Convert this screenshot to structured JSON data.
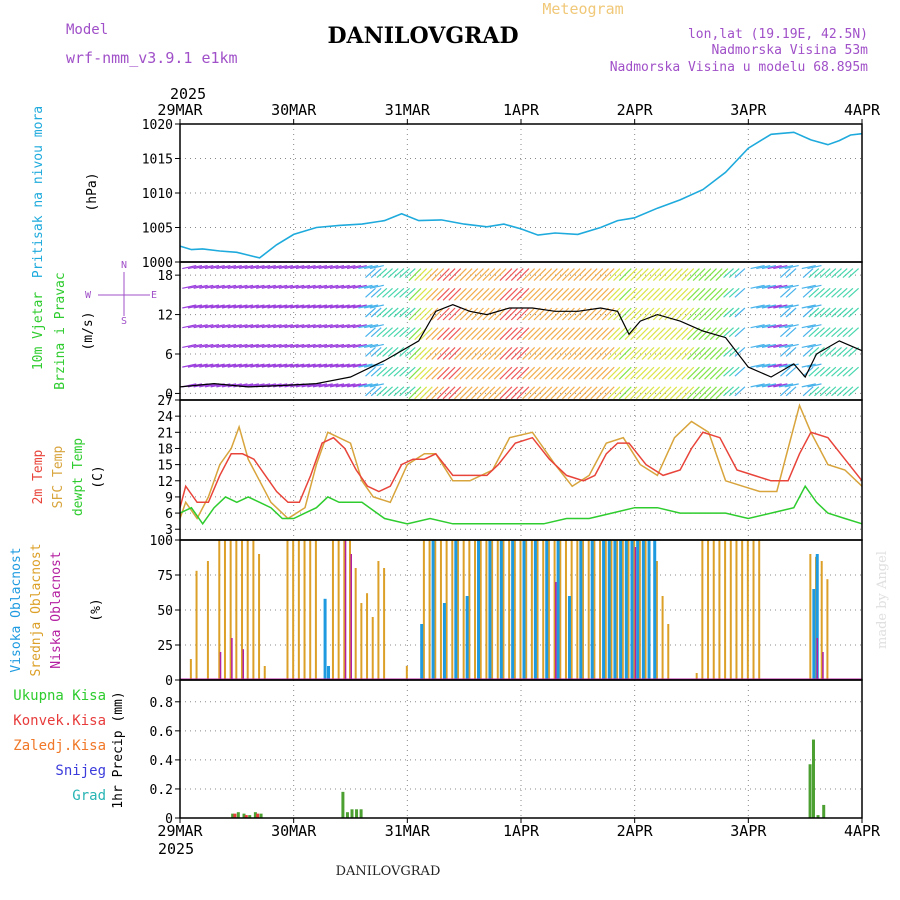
{
  "header": {
    "model_label": "Model",
    "model_name": "wrf-nmm_v3.9.1 e1km",
    "station": "DANILOVGRAD",
    "product": "Meteogram",
    "lonlat": "lon,lat (19.19E, 42.5N)",
    "elevation": "Nadmorska Visina 53m",
    "model_elevation": "Nadmorska Visina u modelu 68.895m",
    "year_top": "2025",
    "year_bottom": "2025",
    "footer_station": "DANILOVGRAD",
    "credit": "made by Angel"
  },
  "colors": {
    "pressure": "#1eaadc",
    "temp2m": "#e8443a",
    "sfc": "#d8a43c",
    "dewpt": "#2ecc2e",
    "high_cloud": "#1e9be0",
    "mid_cloud": "#dca028",
    "low_cloud": "#b41ea0",
    "total_precip": "#4ca032",
    "conv_precip": "#e83c3c",
    "frozen": "#f07828",
    "snow": "#3c3cdc",
    "hail": "#28b4b4",
    "title": "#000000",
    "meta": "#a050c8",
    "meteogram": "#f0c878"
  },
  "chart_data": [
    {
      "type": "line",
      "panel": "pressure",
      "ylabel": [
        "Pritisak na nivou mora",
        "(hPa)"
      ],
      "ylim": [
        1000,
        1020
      ],
      "yticks": [
        1000,
        1005,
        1010,
        1015,
        1020
      ],
      "xticks": [
        "29MAR",
        "30MAR",
        "31MAR",
        "1APR",
        "2APR",
        "3APR",
        "4APR"
      ],
      "grid": true,
      "series": [
        {
          "key": "pressure",
          "x": [
            0,
            0.1,
            0.2,
            0.35,
            0.5,
            0.6,
            0.7,
            0.85,
            1.0,
            1.2,
            1.4,
            1.6,
            1.8,
            1.95,
            2.1,
            2.3,
            2.5,
            2.7,
            2.85,
            3.0,
            3.15,
            3.3,
            3.5,
            3.7,
            3.85,
            4.0,
            4.2,
            4.4,
            4.6,
            4.8,
            5.0,
            5.2,
            5.4,
            5.55,
            5.7,
            5.8,
            5.9,
            6.0
          ],
          "values": [
            1002.3,
            1001.8,
            1001.9,
            1001.6,
            1001.4,
            1001.0,
            1000.6,
            1002.5,
            1004.0,
            1005.0,
            1005.3,
            1005.5,
            1006.0,
            1007.0,
            1006.0,
            1006.1,
            1005.5,
            1005.1,
            1005.5,
            1004.8,
            1003.9,
            1004.2,
            1004.0,
            1005.0,
            1006.0,
            1006.4,
            1007.8,
            1009.0,
            1010.5,
            1013.0,
            1016.5,
            1018.5,
            1018.8,
            1017.7,
            1017.0,
            1017.6,
            1018.4,
            1018.6
          ]
        }
      ]
    },
    {
      "type": "line",
      "panel": "wind",
      "ylabel": [
        "10m Vjetar",
        "Brzina i Pravac",
        "(m/s)"
      ],
      "compass": {
        "n": "N",
        "s": "S",
        "w": "W",
        "e": "E"
      },
      "ylim": [
        -1,
        20
      ],
      "yticks": [
        0,
        6,
        12,
        18
      ],
      "grid": true,
      "series": [
        {
          "key": "speed",
          "x": [
            0,
            0.3,
            0.6,
            0.9,
            1.2,
            1.5,
            1.8,
            2.1,
            2.25,
            2.4,
            2.55,
            2.7,
            2.9,
            3.1,
            3.3,
            3.5,
            3.7,
            3.85,
            3.95,
            4.05,
            4.2,
            4.4,
            4.6,
            4.8,
            5.0,
            5.2,
            5.4,
            5.5,
            5.6,
            5.8,
            6.0
          ],
          "values": [
            1.0,
            1.5,
            1.0,
            1.2,
            1.5,
            2.5,
            5.0,
            8.0,
            12.5,
            13.5,
            12.5,
            12.0,
            13.0,
            13.0,
            12.5,
            12.5,
            13.0,
            12.5,
            9.0,
            11.0,
            12.0,
            11.0,
            9.5,
            8.5,
            4.0,
            2.5,
            4.5,
            2.5,
            6.0,
            8.0,
            6.5
          ]
        }
      ]
    },
    {
      "type": "line",
      "panel": "temperature",
      "ylabel": [
        "2m Temp",
        "SFC Temp",
        "dewpt Temp",
        "(C)"
      ],
      "ylim": [
        1,
        27
      ],
      "yticks": [
        3,
        6,
        9,
        12,
        15,
        18,
        21,
        24,
        27
      ],
      "grid": true,
      "series": [
        {
          "key": "temp2m",
          "name": "2m Temp",
          "x": [
            0,
            0.05,
            0.15,
            0.25,
            0.35,
            0.45,
            0.55,
            0.65,
            0.75,
            0.85,
            0.95,
            1.05,
            1.15,
            1.25,
            1.35,
            1.45,
            1.55,
            1.65,
            1.75,
            1.85,
            1.95,
            2.05,
            2.15,
            2.25,
            2.4,
            2.55,
            2.7,
            2.8,
            2.95,
            3.1,
            3.25,
            3.4,
            3.55,
            3.65,
            3.75,
            3.85,
            3.95,
            4.1,
            4.25,
            4.4,
            4.5,
            4.6,
            4.75,
            4.9,
            5.05,
            5.2,
            5.35,
            5.45,
            5.55,
            5.7,
            5.85,
            6.0
          ],
          "values": [
            7,
            11,
            8,
            8,
            13,
            17,
            17,
            16,
            13,
            10,
            8,
            8,
            13,
            19,
            20,
            18,
            14,
            11,
            10,
            11,
            15,
            16,
            16,
            17,
            13,
            13,
            13,
            15,
            19,
            20,
            16,
            13,
            12,
            13,
            17,
            19,
            19,
            15,
            13,
            14,
            18,
            21,
            20,
            14,
            13,
            12,
            12,
            17,
            21,
            20,
            16,
            12
          ]
        },
        {
          "key": "sfc",
          "name": "SFC Temp",
          "x": [
            0,
            0.05,
            0.15,
            0.25,
            0.35,
            0.45,
            0.52,
            0.6,
            0.7,
            0.8,
            0.95,
            1.1,
            1.2,
            1.3,
            1.4,
            1.5,
            1.6,
            1.7,
            1.85,
            2.0,
            2.15,
            2.25,
            2.4,
            2.55,
            2.75,
            2.9,
            3.1,
            3.3,
            3.45,
            3.6,
            3.75,
            3.9,
            4.05,
            4.2,
            4.35,
            4.5,
            4.65,
            4.8,
            4.95,
            5.1,
            5.25,
            5.35,
            5.45,
            5.55,
            5.7,
            5.85,
            6.0
          ],
          "values": [
            5,
            8,
            5,
            9,
            15,
            18,
            22,
            16,
            12,
            8,
            5,
            7,
            15,
            21,
            20,
            19,
            12,
            9,
            8,
            15,
            17,
            17,
            12,
            12,
            14,
            20,
            21,
            15,
            11,
            13,
            19,
            20,
            15,
            13,
            20,
            23,
            21,
            12,
            11,
            10,
            10,
            18,
            26,
            21,
            15,
            14,
            11
          ]
        },
        {
          "key": "dewpt",
          "name": "dewpt Temp",
          "x": [
            0,
            0.1,
            0.2,
            0.3,
            0.4,
            0.5,
            0.6,
            0.7,
            0.8,
            0.9,
            1.0,
            1.1,
            1.2,
            1.3,
            1.4,
            1.6,
            1.8,
            2.0,
            2.2,
            2.4,
            2.6,
            2.8,
            3.0,
            3.2,
            3.4,
            3.6,
            3.8,
            4.0,
            4.2,
            4.4,
            4.6,
            4.8,
            5.0,
            5.2,
            5.4,
            5.5,
            5.6,
            5.7,
            5.85,
            6.0
          ],
          "values": [
            6,
            7,
            4,
            7,
            9,
            8,
            9,
            8,
            7,
            5,
            5,
            6,
            7,
            9,
            8,
            8,
            5,
            4,
            5,
            4,
            4,
            4,
            4,
            4,
            5,
            5,
            6,
            7,
            7,
            6,
            6,
            6,
            5,
            6,
            7,
            11,
            8,
            6,
            5,
            4
          ]
        }
      ]
    },
    {
      "type": "bar",
      "panel": "cloud",
      "ylabel": [
        "Visoka Oblacnost",
        "Srednja Oblacnost",
        "Niska Oblacnost",
        "(%)"
      ],
      "ylim": [
        0,
        100
      ],
      "yticks": [
        0,
        25,
        50,
        75,
        100
      ],
      "grid": true,
      "series": [
        {
          "key": "high_cloud",
          "name": "Visoka Oblacnost",
          "x": [
            1.25,
            1.28,
            2.1,
            2.2,
            2.3,
            2.4,
            2.5,
            2.6,
            2.7,
            2.8,
            2.9,
            3.0,
            3.1,
            3.2,
            3.3,
            3.4,
            3.5,
            3.6,
            3.7,
            3.75,
            3.8,
            3.85,
            3.9,
            3.95,
            4.0,
            4.05,
            4.1,
            4.15,
            5.55,
            5.58
          ],
          "values": [
            58,
            10,
            40,
            100,
            55,
            100,
            60,
            100,
            100,
            100,
            100,
            100,
            100,
            100,
            100,
            60,
            100,
            100,
            100,
            100,
            100,
            100,
            100,
            100,
            100,
            100,
            100,
            100,
            65,
            90
          ]
        },
        {
          "key": "mid_cloud",
          "name": "Srednja Oblacnost",
          "x": [
            0.1,
            0.15,
            0.25,
            0.35,
            0.4,
            0.45,
            0.5,
            0.55,
            0.6,
            0.65,
            0.7,
            0.75,
            0.95,
            1.0,
            1.05,
            1.1,
            1.15,
            1.2,
            1.35,
            1.4,
            1.45,
            1.5,
            1.55,
            1.6,
            1.65,
            1.7,
            1.75,
            1.8,
            2.0,
            2.15,
            2.2,
            2.25,
            2.3,
            2.35,
            2.4,
            2.45,
            2.5,
            2.55,
            2.6,
            2.65,
            2.7,
            2.75,
            2.8,
            2.85,
            2.9,
            2.95,
            3.0,
            3.05,
            3.1,
            3.15,
            3.2,
            3.25,
            3.3,
            3.35,
            3.4,
            3.45,
            3.5,
            3.55,
            3.6,
            3.65,
            3.7,
            3.75,
            3.8,
            3.85,
            3.9,
            3.95,
            4.0,
            4.05,
            4.1,
            4.2,
            4.25,
            4.3,
            4.55,
            4.6,
            4.65,
            4.7,
            4.75,
            4.8,
            4.85,
            4.9,
            4.95,
            5.0,
            5.05,
            5.1,
            5.55,
            5.6,
            5.65,
            5.7
          ],
          "values": [
            15,
            78,
            85,
            100,
            100,
            100,
            100,
            100,
            100,
            100,
            90,
            10,
            100,
            100,
            100,
            100,
            100,
            100,
            100,
            100,
            100,
            100,
            80,
            55,
            62,
            45,
            85,
            80,
            10,
            100,
            100,
            100,
            100,
            100,
            100,
            100,
            100,
            100,
            100,
            100,
            100,
            100,
            100,
            100,
            100,
            100,
            100,
            100,
            100,
            100,
            100,
            100,
            100,
            100,
            100,
            100,
            100,
            100,
            100,
            100,
            100,
            100,
            100,
            100,
            100,
            100,
            100,
            100,
            100,
            85,
            60,
            40,
            5,
            100,
            100,
            100,
            100,
            100,
            100,
            100,
            100,
            100,
            100,
            100,
            90,
            88,
            85,
            72
          ]
        },
        {
          "key": "low_cloud",
          "name": "Niska Oblacnost",
          "x": [
            0.35,
            0.45,
            0.55,
            1.45,
            1.5,
            3.3,
            4.0,
            5.6,
            5.65
          ],
          "values": [
            20,
            30,
            22,
            100,
            90,
            70,
            95,
            30,
            20
          ]
        }
      ]
    },
    {
      "type": "bar",
      "panel": "precip",
      "ylabel": [
        "1hr Precip (mm)"
      ],
      "legend_labels": [
        "Ukupna Kisa",
        "Konvek.Kisa",
        "Zaledj.Kisa",
        "Snijeg",
        "Grad"
      ],
      "ylim": [
        0,
        0.95
      ],
      "yticks": [
        0,
        0.2,
        0.4,
        0.6,
        0.8
      ],
      "xticks": [
        "29MAR",
        "30MAR",
        "31MAR",
        "1APR",
        "2APR",
        "3APR",
        "4APR"
      ],
      "grid": true,
      "series": [
        {
          "key": "total_precip",
          "name": "Ukupna Kisa",
          "x": [
            0.45,
            0.5,
            0.55,
            0.6,
            0.65,
            0.7,
            1.42,
            1.46,
            1.5,
            1.54,
            1.58,
            5.53,
            5.56,
            5.6,
            5.65
          ],
          "values": [
            0.03,
            0.04,
            0.03,
            0.02,
            0.04,
            0.03,
            0.18,
            0.04,
            0.06,
            0.06,
            0.06,
            0.37,
            0.54,
            0.02,
            0.09
          ]
        },
        {
          "key": "conv_precip",
          "name": "Konvek.Kisa",
          "x": [
            0.47,
            0.57,
            0.67
          ],
          "values": [
            0.03,
            0.02,
            0.03
          ]
        }
      ]
    }
  ]
}
